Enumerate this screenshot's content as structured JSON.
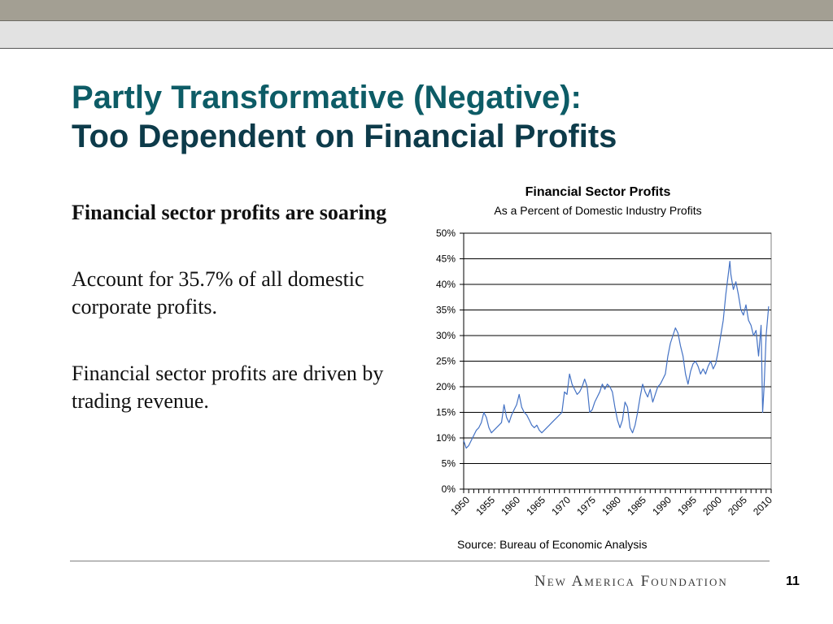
{
  "slide": {
    "title_line1": "Partly Transformative (Negative):",
    "title_line2": "Too Dependent on Financial Profits",
    "page_number": "11",
    "logo_text": "New America Foundation",
    "title_colors": [
      "#0d5c66",
      "#0d3b4a"
    ]
  },
  "body": {
    "heading": "Financial sector profits are soaring",
    "paragraph1": "Account for 35.7% of all domestic corporate profits.",
    "paragraph2": "Financial sector profits are driven by trading revenue."
  },
  "chart_data": {
    "type": "line",
    "title": "Financial Sector Profits",
    "subtitle": "As a Percent of Domestic Industry Profits",
    "source": "Source: Bureau of Economic Analysis",
    "xlabel": "",
    "ylabel": "",
    "xlim": [
      1950,
      2011
    ],
    "ylim": [
      0,
      50
    ],
    "grid": true,
    "line_color": "#4472c4",
    "yticks": [
      "0%",
      "5%",
      "10%",
      "15%",
      "20%",
      "25%",
      "30%",
      "35%",
      "40%",
      "45%",
      "50%"
    ],
    "xticks": [
      "1950",
      "1955",
      "1960",
      "1965",
      "1970",
      "1975",
      "1980",
      "1985",
      "1990",
      "1995",
      "2000",
      "2005",
      "2010"
    ],
    "series": [
      {
        "values": [
          [
            1950.0,
            9.5
          ],
          [
            1950.5,
            8.0
          ],
          [
            1951.0,
            8.5
          ],
          [
            1951.5,
            9.5
          ],
          [
            1952.0,
            10.5
          ],
          [
            1952.5,
            11.5
          ],
          [
            1953.0,
            12.0
          ],
          [
            1953.5,
            13.0
          ],
          [
            1954.0,
            15.0
          ],
          [
            1954.5,
            14.0
          ],
          [
            1955.0,
            12.0
          ],
          [
            1955.5,
            11.0
          ],
          [
            1956.0,
            11.5
          ],
          [
            1956.5,
            12.0
          ],
          [
            1957.0,
            12.5
          ],
          [
            1957.5,
            13.0
          ],
          [
            1958.0,
            16.5
          ],
          [
            1958.5,
            14.0
          ],
          [
            1959.0,
            13.0
          ],
          [
            1959.5,
            14.5
          ],
          [
            1960.0,
            15.5
          ],
          [
            1960.5,
            16.5
          ],
          [
            1961.0,
            18.5
          ],
          [
            1961.5,
            16.0
          ],
          [
            1962.0,
            15.0
          ],
          [
            1962.5,
            14.5
          ],
          [
            1963.0,
            13.5
          ],
          [
            1963.5,
            12.5
          ],
          [
            1964.0,
            12.0
          ],
          [
            1964.5,
            12.5
          ],
          [
            1965.0,
            11.5
          ],
          [
            1965.5,
            11.0
          ],
          [
            1966.0,
            11.5
          ],
          [
            1966.5,
            12.0
          ],
          [
            1967.0,
            12.5
          ],
          [
            1967.5,
            13.0
          ],
          [
            1968.0,
            13.5
          ],
          [
            1968.5,
            14.0
          ],
          [
            1969.0,
            14.5
          ],
          [
            1969.5,
            15.0
          ],
          [
            1970.0,
            19.0
          ],
          [
            1970.5,
            18.5
          ],
          [
            1971.0,
            22.5
          ],
          [
            1971.5,
            20.5
          ],
          [
            1972.0,
            19.5
          ],
          [
            1972.5,
            18.5
          ],
          [
            1973.0,
            19.0
          ],
          [
            1973.5,
            20.0
          ],
          [
            1974.0,
            21.5
          ],
          [
            1974.5,
            20.0
          ],
          [
            1975.0,
            15.0
          ],
          [
            1975.5,
            15.5
          ],
          [
            1976.0,
            17.0
          ],
          [
            1976.5,
            18.0
          ],
          [
            1977.0,
            19.0
          ],
          [
            1977.5,
            20.5
          ],
          [
            1978.0,
            19.5
          ],
          [
            1978.5,
            20.5
          ],
          [
            1979.0,
            20.0
          ],
          [
            1979.5,
            19.0
          ],
          [
            1980.0,
            16.0
          ],
          [
            1980.5,
            13.5
          ],
          [
            1981.0,
            12.0
          ],
          [
            1981.5,
            13.5
          ],
          [
            1982.0,
            17.0
          ],
          [
            1982.5,
            16.0
          ],
          [
            1983.0,
            12.0
          ],
          [
            1983.5,
            11.0
          ],
          [
            1984.0,
            12.5
          ],
          [
            1984.5,
            15.0
          ],
          [
            1985.0,
            18.0
          ],
          [
            1985.5,
            20.5
          ],
          [
            1986.0,
            19.0
          ],
          [
            1986.5,
            18.0
          ],
          [
            1987.0,
            19.5
          ],
          [
            1987.5,
            17.0
          ],
          [
            1988.0,
            18.5
          ],
          [
            1988.5,
            20.0
          ],
          [
            1989.0,
            20.5
          ],
          [
            1989.5,
            21.5
          ],
          [
            1990.0,
            22.5
          ],
          [
            1990.5,
            26.0
          ],
          [
            1991.0,
            28.5
          ],
          [
            1991.5,
            30.0
          ],
          [
            1992.0,
            31.5
          ],
          [
            1992.5,
            30.5
          ],
          [
            1993.0,
            28.0
          ],
          [
            1993.5,
            26.0
          ],
          [
            1994.0,
            22.5
          ],
          [
            1994.5,
            20.5
          ],
          [
            1995.0,
            23.0
          ],
          [
            1995.5,
            24.5
          ],
          [
            1996.0,
            25.0
          ],
          [
            1996.5,
            24.0
          ],
          [
            1997.0,
            22.5
          ],
          [
            1997.5,
            23.5
          ],
          [
            1998.0,
            22.5
          ],
          [
            1998.5,
            24.0
          ],
          [
            1999.0,
            25.0
          ],
          [
            1999.5,
            23.5
          ],
          [
            2000.0,
            24.5
          ],
          [
            2000.5,
            27.0
          ],
          [
            2001.0,
            30.0
          ],
          [
            2001.5,
            33.0
          ],
          [
            2002.0,
            38.0
          ],
          [
            2002.5,
            42.0
          ],
          [
            2002.8,
            44.5
          ],
          [
            2003.0,
            42.0
          ],
          [
            2003.5,
            39.0
          ],
          [
            2004.0,
            40.5
          ],
          [
            2004.5,
            38.0
          ],
          [
            2005.0,
            35.0
          ],
          [
            2005.5,
            34.0
          ],
          [
            2006.0,
            36.0
          ],
          [
            2006.5,
            33.0
          ],
          [
            2007.0,
            32.0
          ],
          [
            2007.5,
            30.0
          ],
          [
            2008.0,
            31.0
          ],
          [
            2008.5,
            26.0
          ],
          [
            2009.0,
            32.0
          ],
          [
            2009.3,
            15.0
          ],
          [
            2009.6,
            20.0
          ],
          [
            2010.0,
            30.0
          ],
          [
            2010.5,
            35.7
          ]
        ]
      }
    ]
  }
}
